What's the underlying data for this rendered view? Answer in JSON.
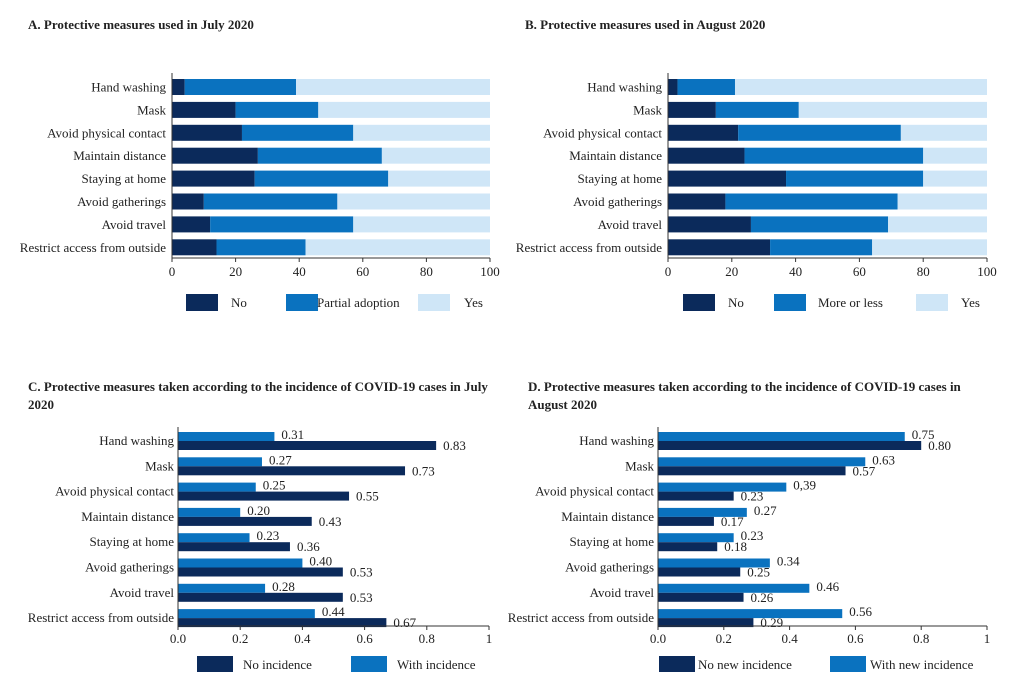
{
  "colors": {
    "no": "#0b2a5b",
    "partial": "#0a72bf",
    "yes": "#cfe6f7"
  },
  "chart_data": [
    {
      "id": "A",
      "type": "bar",
      "stacked": true,
      "orientation": "horizontal",
      "title": "A. Protective measures used in July 2020",
      "categories": [
        "Hand washing",
        "Mask",
        "Avoid physical contact",
        "Maintain distance",
        "Staying at home",
        "Avoid gatherings",
        "Avoid travel",
        "Restrict access from outside"
      ],
      "series": [
        {
          "name": "No",
          "color": "#0b2a5b",
          "values": [
            4,
            20,
            22,
            27,
            26,
            10,
            12,
            14
          ]
        },
        {
          "name": "Partial adoption",
          "color": "#0a72bf",
          "values": [
            35,
            26,
            35,
            39,
            42,
            42,
            45,
            28
          ]
        },
        {
          "name": "Yes",
          "color": "#cfe6f7",
          "values": [
            61,
            54,
            43,
            34,
            32,
            48,
            43,
            58
          ]
        }
      ],
      "xlim": [
        0,
        100
      ],
      "xticks": [
        "0",
        "20",
        "40",
        "60",
        "80",
        "100"
      ],
      "legend_position": "bottom"
    },
    {
      "id": "B",
      "type": "bar",
      "stacked": true,
      "orientation": "horizontal",
      "title": "B. Protective measures used in August 2020",
      "categories": [
        "Hand washing",
        "Mask",
        "Avoid physical contact",
        "Maintain distance",
        "Staying at home",
        "Avoid gatherings",
        "Avoid travel",
        "Restrict access from outside"
      ],
      "series": [
        {
          "name": "No",
          "color": "#0b2a5b",
          "values": [
            3,
            15,
            22,
            24,
            37,
            18,
            26,
            32
          ]
        },
        {
          "name": "More or less",
          "color": "#0a72bf",
          "values": [
            18,
            26,
            51,
            56,
            43,
            54,
            43,
            32
          ]
        },
        {
          "name": "Yes",
          "color": "#cfe6f7",
          "values": [
            79,
            59,
            27,
            20,
            20,
            28,
            31,
            36
          ]
        }
      ],
      "xlim": [
        0,
        100
      ],
      "xticks": [
        "0",
        "20",
        "40",
        "60",
        "80",
        "100"
      ],
      "legend_position": "bottom"
    },
    {
      "id": "C",
      "type": "bar",
      "orientation": "horizontal",
      "title": "C. Protective measures taken according to the incidence of COVID-19 cases in July 2020",
      "categories": [
        "Hand washing",
        "Mask",
        "Avoid physical contact",
        "Maintain distance",
        "Staying at home",
        "Avoid gatherings",
        "Avoid travel",
        "Restrict access from outside"
      ],
      "series": [
        {
          "name": "With incidence",
          "color": "#0a72bf",
          "values": [
            0.31,
            0.27,
            0.25,
            0.2,
            0.23,
            0.4,
            0.28,
            0.44
          ],
          "labels": [
            "0.31",
            "0.27",
            "0.25",
            "0.20",
            "0.23",
            "0.40",
            "0.28",
            "0.44"
          ]
        },
        {
          "name": "No incidence",
          "color": "#0b2a5b",
          "values": [
            0.83,
            0.73,
            0.55,
            0.43,
            0.36,
            0.53,
            0.53,
            0.67
          ],
          "labels": [
            "0.83",
            "0.73",
            "0.55",
            "0.43",
            "0.36",
            "0.53",
            "0.53",
            "0.67"
          ]
        }
      ],
      "xlim": [
        0,
        1
      ],
      "xticks": [
        "0.0",
        "0.2",
        "0.4",
        "0.6",
        "0.8",
        "1"
      ],
      "legend_order": [
        "No incidence",
        "With incidence"
      ],
      "legend_position": "bottom"
    },
    {
      "id": "D",
      "type": "bar",
      "orientation": "horizontal",
      "title": "D. Protective measures taken according to the incidence of COVID-19 cases in August 2020",
      "categories": [
        "Hand washing",
        "Mask",
        "Avoid physical contact",
        "Maintain distance",
        "Staying at home",
        "Avoid gatherings",
        "Avoid travel",
        "Restrict access from outside"
      ],
      "series": [
        {
          "name": "With new incidence",
          "color": "#0a72bf",
          "values": [
            0.75,
            0.63,
            0.39,
            0.27,
            0.23,
            0.34,
            0.46,
            0.56
          ],
          "labels": [
            "0.75",
            "0.63",
            "0,39",
            "0.27",
            "0.23",
            "0.34",
            "0.46",
            "0.56"
          ]
        },
        {
          "name": "No new incidence",
          "color": "#0b2a5b",
          "values": [
            0.8,
            0.57,
            0.23,
            0.17,
            0.18,
            0.25,
            0.26,
            0.29
          ],
          "labels": [
            "0.80",
            "0.57",
            "0.23",
            "0.17",
            "0.18",
            "0.25",
            "0.26",
            "0.29"
          ]
        }
      ],
      "xlim": [
        0,
        1
      ],
      "xticks": [
        "0.0",
        "0.2",
        "0.4",
        "0.6",
        "0.8",
        "1"
      ],
      "legend_order": [
        "No new incidence",
        "With new incidence"
      ],
      "legend_position": "bottom"
    }
  ]
}
